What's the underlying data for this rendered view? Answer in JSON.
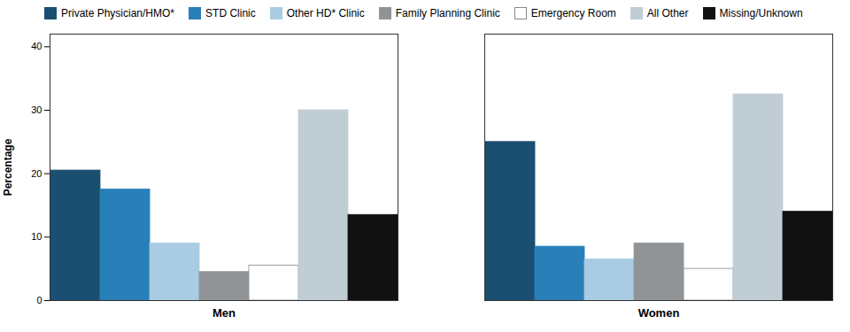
{
  "chart_data": {
    "type": "bar",
    "categories": [
      "Men",
      "Women"
    ],
    "series": [
      {
        "name": "Private Physician/HMO*",
        "values": [
          20.5,
          25.0
        ],
        "color": "#1b4f72"
      },
      {
        "name": "STD Clinic",
        "values": [
          17.5,
          8.5
        ],
        "color": "#2980b9"
      },
      {
        "name": "Other HD* Clinic",
        "values": [
          9.0,
          6.5
        ],
        "color": "#a9cce3"
      },
      {
        "name": "Family Planning Clinic",
        "values": [
          4.5,
          9.0
        ],
        "color": "#909497"
      },
      {
        "name": "Emergency Room",
        "values": [
          5.5,
          5.0
        ],
        "color": "#ffffff"
      },
      {
        "name": "All Other",
        "values": [
          30.0,
          32.5
        ],
        "color": "#c0cdd4"
      },
      {
        "name": "Missing/Unknown",
        "values": [
          13.5,
          14.0
        ],
        "color": "#111111"
      }
    ],
    "ylabel": "Percentage",
    "ylim": [
      0,
      42
    ],
    "yticks": [
      0,
      10,
      20,
      30,
      40
    ],
    "grid": false,
    "legend": "upper left"
  }
}
